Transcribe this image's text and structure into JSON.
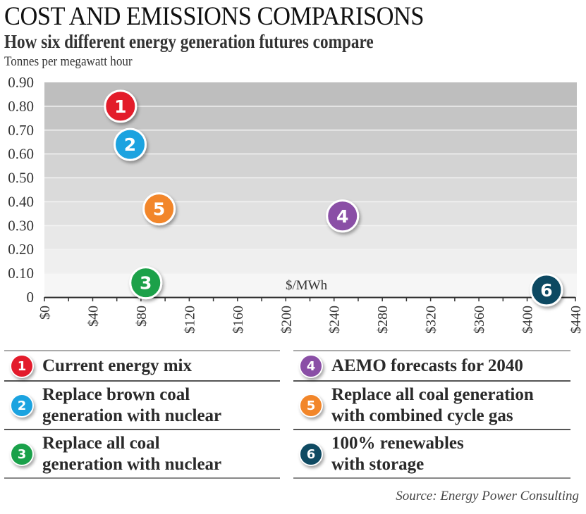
{
  "header": {
    "title": "COST AND EMISSIONS COMPARISONS",
    "subtitle": "How six different energy generation futures compare",
    "y_unit_label": "Tonnes per megawatt hour"
  },
  "chart_data": {
    "type": "scatter",
    "title": "COST AND EMISSIONS COMPARISONS",
    "subtitle": "How six different energy generation futures compare",
    "xlabel": "$/MWh",
    "ylabel": "Tonnes per megawatt hour",
    "xlim": [
      0,
      440
    ],
    "ylim": [
      0,
      0.9
    ],
    "x_ticks": [
      0,
      20,
      40,
      60,
      80,
      100,
      120,
      140,
      160,
      180,
      200,
      220,
      240,
      260,
      280,
      300,
      320,
      340,
      360,
      380,
      400,
      420,
      440
    ],
    "x_tick_labels": [
      "$0",
      "$40",
      "$80",
      "$120",
      "$160",
      "$200",
      "$240",
      "$280",
      "$320",
      "$360",
      "$400",
      "$440"
    ],
    "x_tick_label_values": [
      0,
      40,
      80,
      120,
      160,
      200,
      240,
      280,
      320,
      360,
      400,
      440
    ],
    "y_ticks": [
      0,
      0.1,
      0.2,
      0.3,
      0.4,
      0.5,
      0.6,
      0.7,
      0.8,
      0.9
    ],
    "y_tick_labels": [
      "0",
      "0.10",
      "0.20",
      "0.30",
      "0.40",
      "0.50",
      "0.60",
      "0.70",
      "0.80",
      "0.90"
    ],
    "grid": true,
    "legend_position": "bottom",
    "points": [
      {
        "id": "1",
        "label": "Current energy mix",
        "x": 63,
        "y": 0.8,
        "color": "#e31b2b"
      },
      {
        "id": "2",
        "label": "Replace brown coal generation with nuclear",
        "x": 71,
        "y": 0.64,
        "color": "#1ba3e0"
      },
      {
        "id": "3",
        "label": "Replace all coal generation with nuclear",
        "x": 84,
        "y": 0.06,
        "color": "#1aa14a"
      },
      {
        "id": "4",
        "label": "AEMO forecasts for 2040",
        "x": 247,
        "y": 0.34,
        "color": "#8a4fa6"
      },
      {
        "id": "5",
        "label": "Replace all coal generation with combined cycle gas",
        "x": 95,
        "y": 0.37,
        "color": "#f2862a"
      },
      {
        "id": "6",
        "label": "100% renewables with storage",
        "x": 416,
        "y": 0.03,
        "color": "#0f4a62"
      }
    ]
  },
  "legend": {
    "left": [
      {
        "id": "1",
        "lines": [
          "Current energy mix"
        ],
        "color": "#e31b2b"
      },
      {
        "id": "2",
        "lines": [
          "Replace brown coal",
          "generation with nuclear"
        ],
        "color": "#1ba3e0"
      },
      {
        "id": "3",
        "lines": [
          "Replace all coal",
          "generation with nuclear"
        ],
        "color": "#1aa14a"
      }
    ],
    "right": [
      {
        "id": "4",
        "lines": [
          "AEMO forecasts for 2040"
        ],
        "color": "#8a4fa6"
      },
      {
        "id": "5",
        "lines": [
          "Replace all coal generation",
          "with combined cycle gas"
        ],
        "color": "#f2862a"
      },
      {
        "id": "6",
        "lines": [
          "100% renewables",
          "with storage"
        ],
        "color": "#0f4a62"
      }
    ]
  },
  "source": "Source: Energy Power Consulting"
}
